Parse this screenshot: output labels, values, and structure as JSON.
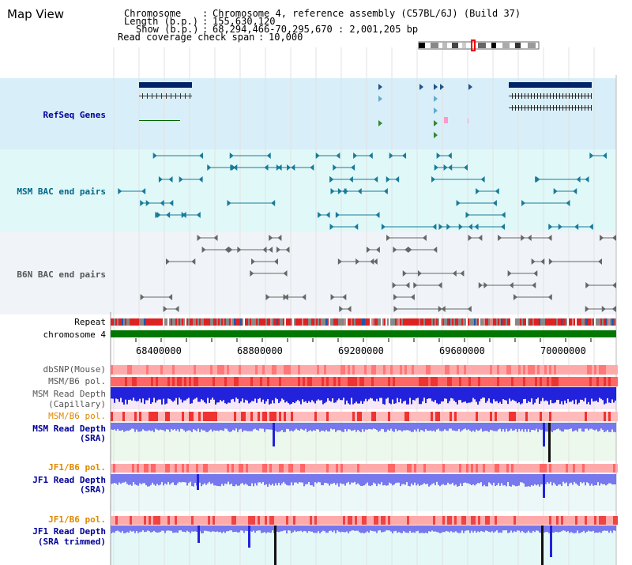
{
  "page": {
    "title": "Map View"
  },
  "header": {
    "chromosome_label": "Chromosome",
    "chromosome_value": "Chromosome 4, reference assembly (C57BL/6J) (Build 37)",
    "length_label": "Length (b.p.)",
    "length_value": "155,630,120",
    "show_label": "Show (b.p.)",
    "show_value": "68,294,466-70,295,670 : 2,001,205 bp",
    "coverage_label": "Read coverage check span",
    "coverage_value": "10,000"
  },
  "tracks": {
    "refseq": "RefSeq Genes",
    "msm_bac": "MSM BAC end pairs",
    "b6n_bac": "B6N BAC end pairs",
    "repeat": "Repeat",
    "chromosome": "chromosome 4",
    "dbsnp": "dbSNP(Mouse)",
    "msm_b6_pol_1": "MSM/B6 pol.",
    "msm_rd_cap_1": "MSM Read Depth",
    "msm_rd_cap_2": "(Capillary)",
    "msm_b6_pol_2": "MSM/B6 pol.",
    "msm_rd_sra_1": "MSM Read Depth",
    "msm_rd_sra_2": "(SRA)",
    "jf1_b6_pol_1": "JF1/B6 pol.",
    "jf1_rd_sra_1": "JF1 Read Depth",
    "jf1_rd_sra_2": "(SRA)",
    "jf1_b6_pol_2": "JF1/B6 pol.",
    "jf1_rd_trim_1": "JF1 Read Depth",
    "jf1_rd_trim_2": "(SRA trimmed)"
  },
  "axis": {
    "ticks": [
      "68400000",
      "68800000",
      "69200000",
      "69600000",
      "70000000"
    ]
  },
  "colors": {
    "refseq_bg": "#d8eef8",
    "msm_bg": "#e0f8f8",
    "b6n_bg": "#f0f4f8",
    "label_blue": "#000099",
    "label_teal": "#006688",
    "label_orange": "#e08800",
    "chromosome_green": "#007700"
  }
}
